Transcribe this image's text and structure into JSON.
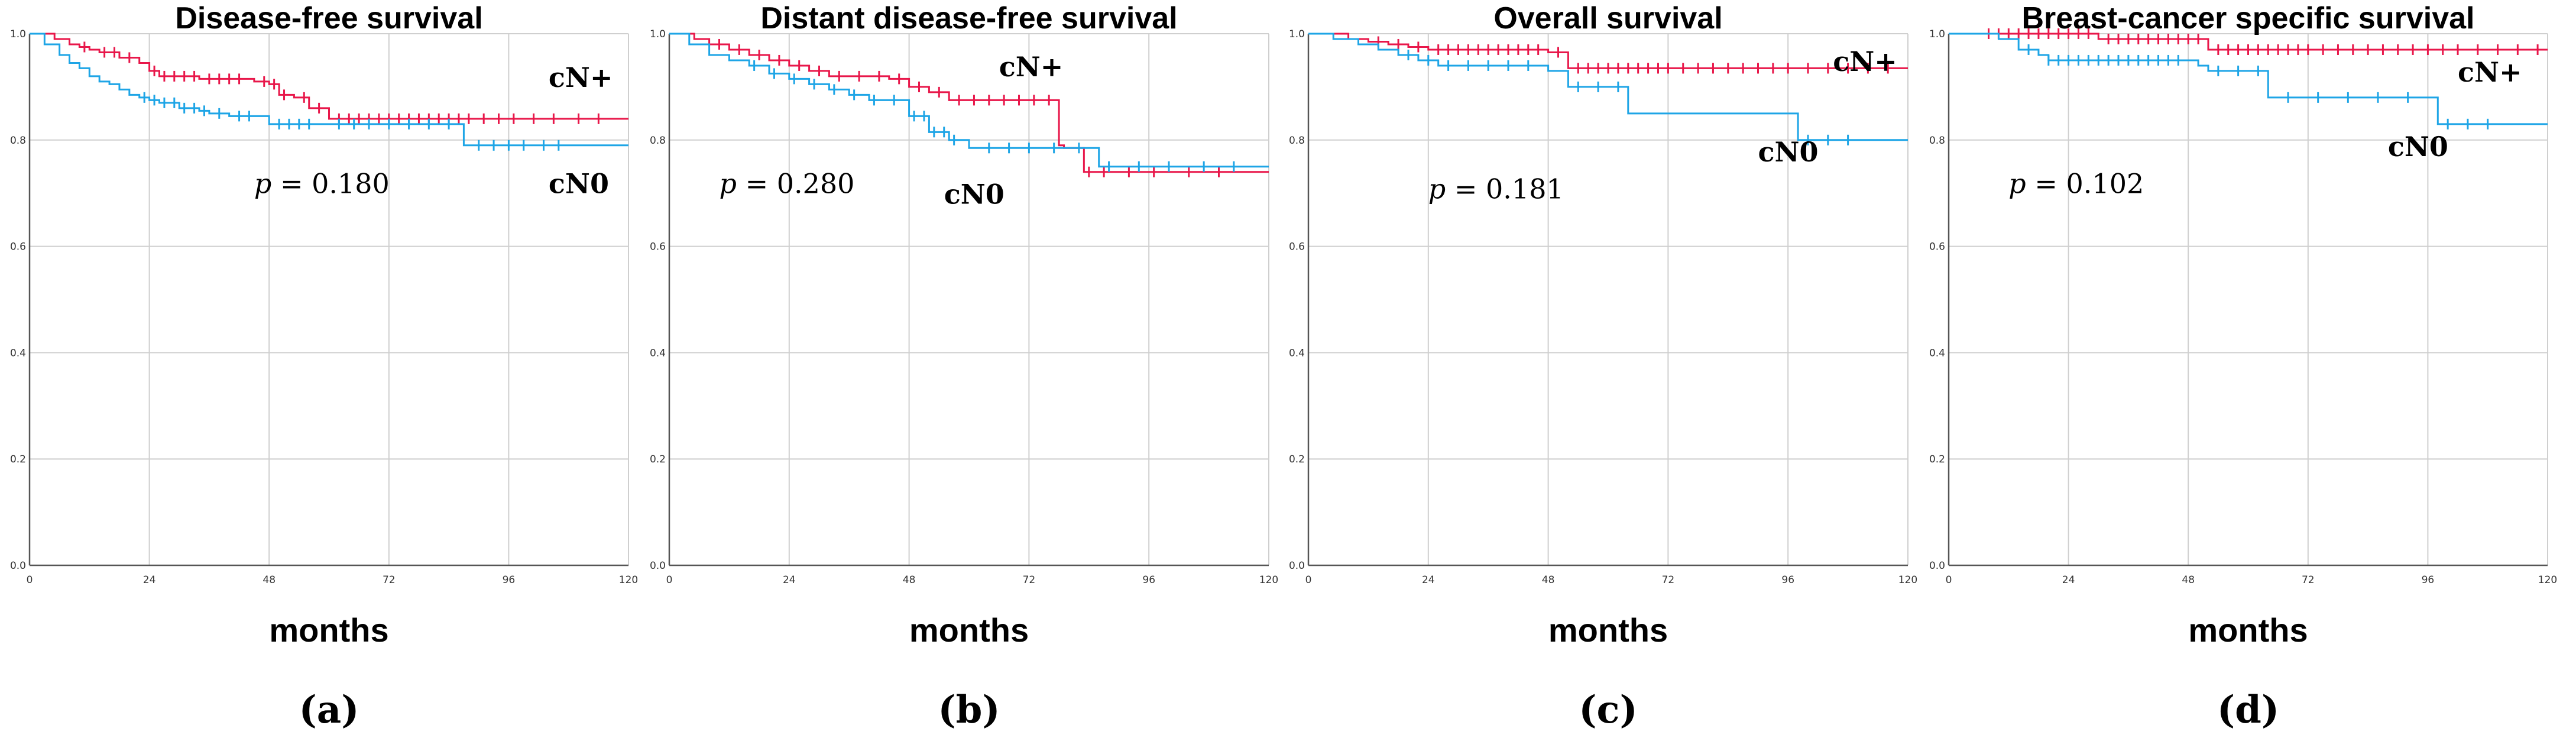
{
  "chart_data": [
    {
      "type": "line",
      "panel_label": "(a)",
      "title": "Disease-free survival",
      "xlabel": "months",
      "ylabel": "",
      "xlim": [
        0,
        120
      ],
      "ylim": [
        0,
        1
      ],
      "x_ticks": [
        "0",
        "24",
        "48",
        "72",
        "96",
        "120"
      ],
      "y_ticks": [
        "0.0",
        "0.2",
        "0.4",
        "0.6",
        "0.8",
        "1.0"
      ],
      "grid": true,
      "p_prefix": "p",
      "p_text": " = 0.180",
      "p_at": [
        45,
        0.7
      ],
      "series": [
        {
          "name": "cN+",
          "color": "#e8174a",
          "label_at": [
            104,
            0.9
          ],
          "x": [
            0,
            5,
            8,
            10,
            12,
            14,
            18,
            22,
            24,
            26,
            34,
            45,
            48,
            50,
            53,
            56,
            60,
            120
          ],
          "values": [
            1.0,
            0.99,
            0.98,
            0.975,
            0.97,
            0.965,
            0.955,
            0.945,
            0.93,
            0.92,
            0.915,
            0.91,
            0.905,
            0.885,
            0.88,
            0.86,
            0.84,
            0.84
          ],
          "censor_x": [
            11,
            15,
            17,
            20,
            25,
            27,
            29,
            31,
            33,
            36,
            38,
            40,
            42,
            47,
            49,
            51,
            55,
            58,
            62,
            64,
            66,
            68,
            70,
            72,
            74,
            76,
            78,
            80,
            82,
            84,
            86,
            88,
            91,
            94,
            97,
            101,
            105,
            110,
            114
          ]
        },
        {
          "name": "cN0",
          "color": "#1ea5e6",
          "label_at": [
            104,
            0.7
          ],
          "x": [
            0,
            3,
            6,
            8,
            10,
            12,
            14,
            16,
            18,
            20,
            22,
            24,
            26,
            30,
            34,
            36,
            40,
            48,
            58,
            60,
            87,
            120
          ],
          "values": [
            1.0,
            0.98,
            0.96,
            0.945,
            0.935,
            0.92,
            0.91,
            0.905,
            0.895,
            0.885,
            0.88,
            0.875,
            0.87,
            0.86,
            0.855,
            0.85,
            0.845,
            0.83,
            0.83,
            0.83,
            0.79,
            0.79
          ],
          "censor_x": [
            23,
            25,
            27,
            29,
            31,
            33,
            35,
            38,
            42,
            44,
            50,
            52,
            54,
            56,
            62,
            65,
            68,
            72,
            76,
            80,
            84,
            90,
            93,
            96,
            99,
            103,
            106
          ]
        }
      ]
    },
    {
      "type": "line",
      "panel_label": "(b)",
      "title": "Distant disease-free survival",
      "xlabel": "months",
      "ylabel": "",
      "xlim": [
        0,
        120
      ],
      "ylim": [
        0,
        1
      ],
      "x_ticks": [
        "0",
        "24",
        "48",
        "72",
        "96",
        "120"
      ],
      "y_ticks": [
        "0.0",
        "0.2",
        "0.4",
        "0.6",
        "0.8",
        "1.0"
      ],
      "grid": true,
      "p_prefix": "p",
      "p_text": " = 0.280",
      "p_at": [
        10,
        0.7
      ],
      "series": [
        {
          "name": "cN+",
          "color": "#e8174a",
          "label_at": [
            66,
            0.92
          ],
          "x": [
            0,
            5,
            8,
            12,
            16,
            20,
            24,
            28,
            32,
            44,
            48,
            52,
            56,
            60,
            78,
            79,
            83,
            86,
            120
          ],
          "values": [
            1.0,
            0.99,
            0.98,
            0.97,
            0.96,
            0.95,
            0.94,
            0.93,
            0.92,
            0.915,
            0.9,
            0.89,
            0.875,
            0.875,
            0.79,
            0.785,
            0.74,
            0.74,
            0.74
          ],
          "censor_x": [
            10,
            14,
            18,
            22,
            26,
            30,
            34,
            38,
            42,
            46,
            50,
            54,
            58,
            61,
            64,
            67,
            70,
            73,
            76,
            84,
            87,
            92,
            97,
            104,
            110
          ]
        },
        {
          "name": "cN0",
          "color": "#1ea5e6",
          "label_at": [
            55,
            0.68
          ],
          "x": [
            0,
            4,
            8,
            12,
            16,
            20,
            24,
            28,
            32,
            36,
            40,
            48,
            52,
            56,
            60,
            86,
            120
          ],
          "values": [
            1.0,
            0.98,
            0.96,
            0.95,
            0.94,
            0.925,
            0.915,
            0.905,
            0.895,
            0.885,
            0.875,
            0.845,
            0.815,
            0.8,
            0.785,
            0.75,
            0.75
          ],
          "censor_x": [
            17,
            21,
            25,
            29,
            33,
            37,
            41,
            45,
            49,
            51,
            53,
            55,
            57,
            64,
            68,
            72,
            77,
            82,
            88,
            94,
            100,
            107,
            113
          ]
        }
      ]
    },
    {
      "type": "line",
      "panel_label": "(c)",
      "title": "Overall survival",
      "xlabel": "months",
      "ylabel": "",
      "xlim": [
        0,
        120
      ],
      "ylim": [
        0,
        1
      ],
      "x_ticks": [
        "0",
        "24",
        "48",
        "72",
        "96",
        "120"
      ],
      "y_ticks": [
        "0.0",
        "0.2",
        "0.4",
        "0.6",
        "0.8",
        "1.0"
      ],
      "grid": true,
      "p_prefix": "p",
      "p_text": " = 0.181",
      "p_at": [
        24,
        0.69
      ],
      "series": [
        {
          "name": "cN+",
          "color": "#e8174a",
          "label_at": [
            105,
            0.93
          ],
          "x": [
            0,
            8,
            12,
            16,
            20,
            24,
            48,
            52,
            120
          ],
          "values": [
            1.0,
            0.99,
            0.985,
            0.98,
            0.975,
            0.97,
            0.965,
            0.935,
            0.935
          ],
          "censor_x": [
            14,
            18,
            22,
            26,
            28,
            30,
            32,
            34,
            36,
            38,
            40,
            42,
            44,
            46,
            50,
            54,
            56,
            58,
            60,
            62,
            64,
            66,
            68,
            70,
            72,
            75,
            78,
            81,
            84,
            87,
            90,
            93,
            96,
            100,
            104,
            108,
            112,
            116
          ]
        },
        {
          "name": "cN0",
          "color": "#1ea5e6",
          "label_at": [
            90,
            0.76
          ],
          "x": [
            0,
            5,
            10,
            14,
            18,
            22,
            26,
            48,
            52,
            64,
            98,
            120
          ],
          "values": [
            1.0,
            0.99,
            0.98,
            0.97,
            0.96,
            0.95,
            0.94,
            0.93,
            0.9,
            0.85,
            0.8,
            0.8
          ],
          "censor_x": [
            20,
            24,
            28,
            32,
            36,
            40,
            44,
            54,
            58,
            62,
            100,
            104,
            108
          ]
        }
      ]
    },
    {
      "type": "line",
      "panel_label": "(d)",
      "title": "Breast-cancer specific survival",
      "xlabel": "months",
      "ylabel": "",
      "xlim": [
        0,
        120
      ],
      "ylim": [
        0,
        1
      ],
      "x_ticks": [
        "0",
        "24",
        "48",
        "72",
        "96",
        "120"
      ],
      "y_ticks": [
        "0.0",
        "0.2",
        "0.4",
        "0.6",
        "0.8",
        "1.0"
      ],
      "grid": true,
      "p_prefix": "p",
      "p_text": " = 0.102",
      "p_at": [
        12,
        0.7
      ],
      "series": [
        {
          "name": "cN+",
          "color": "#e8174a",
          "label_at": [
            102,
            0.91
          ],
          "x": [
            0,
            30,
            52,
            120
          ],
          "values": [
            1.0,
            0.99,
            0.97,
            0.97
          ],
          "censor_x": [
            8,
            10,
            12,
            14,
            16,
            18,
            20,
            22,
            24,
            26,
            28,
            32,
            34,
            36,
            38,
            40,
            42,
            44,
            46,
            48,
            50,
            54,
            56,
            58,
            60,
            62,
            64,
            66,
            68,
            70,
            72,
            75,
            78,
            81,
            84,
            87,
            90,
            93,
            96,
            99,
            102,
            106,
            110,
            114,
            118
          ]
        },
        {
          "name": "cN0",
          "color": "#1ea5e6",
          "label_at": [
            88,
            0.77
          ],
          "x": [
            0,
            10,
            14,
            18,
            20,
            50,
            52,
            64,
            98,
            120
          ],
          "values": [
            1.0,
            0.99,
            0.97,
            0.96,
            0.95,
            0.94,
            0.93,
            0.88,
            0.83,
            0.83
          ],
          "censor_x": [
            16,
            20,
            22,
            24,
            26,
            28,
            30,
            32,
            34,
            36,
            38,
            40,
            42,
            44,
            46,
            54,
            58,
            62,
            68,
            74,
            80,
            86,
            92,
            100,
            104,
            108
          ]
        }
      ]
    }
  ]
}
